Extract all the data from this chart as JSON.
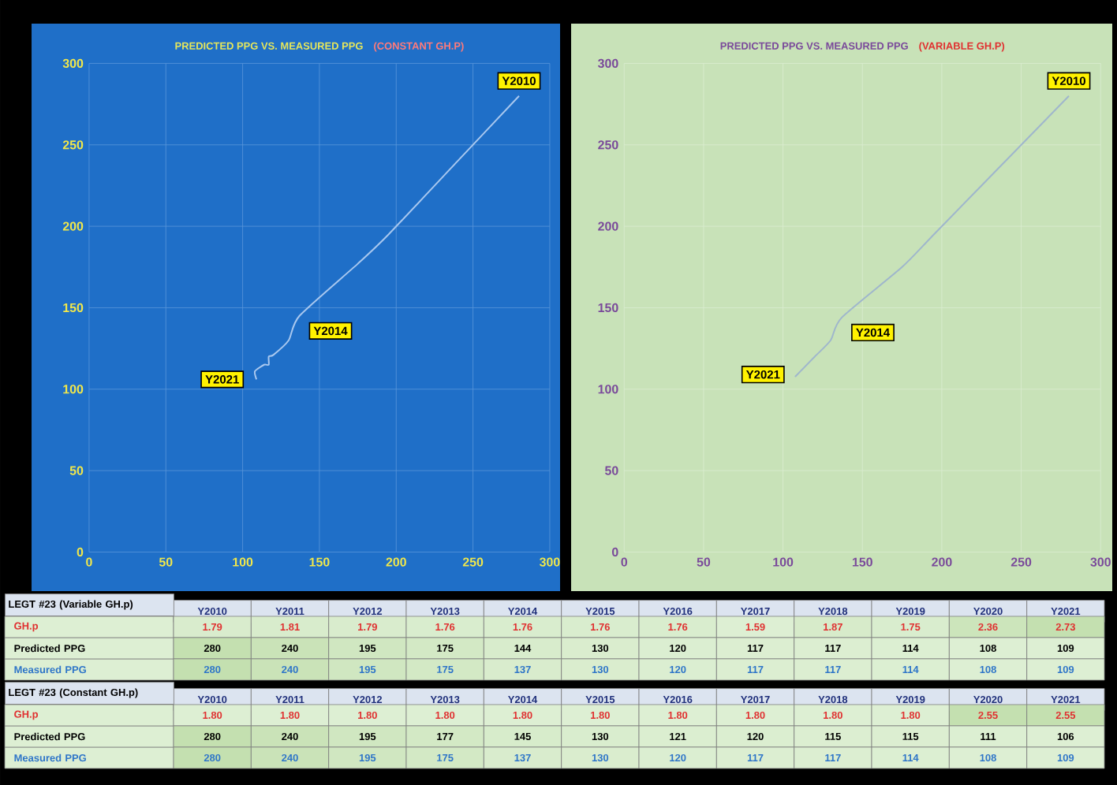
{
  "chart_data": [
    {
      "type": "line",
      "title": "PREDICTED PPG VS. MEASURED PPG",
      "subtitle": "(CONSTANT GH.P)",
      "xlim": [
        0,
        300
      ],
      "ylim": [
        0,
        300
      ],
      "xticks": [
        0,
        50,
        100,
        150,
        200,
        250,
        300
      ],
      "yticks": [
        0,
        50,
        100,
        150,
        200,
        250,
        300
      ],
      "grid": true,
      "series": [
        {
          "color": "#a9c8ef",
          "x": [
            280,
            240,
            195,
            175,
            137,
            130,
            120,
            117,
            117,
            114,
            108,
            109
          ],
          "values": [
            280,
            240,
            195,
            177,
            145,
            130,
            121,
            120,
            115,
            115,
            111,
            106
          ]
        }
      ],
      "annotations": [
        {
          "text": "Y2010",
          "x": 280,
          "y": 280
        },
        {
          "text": "Y2014",
          "x": 137,
          "y": 145
        },
        {
          "text": "Y2021",
          "x": 109,
          "y": 106
        }
      ]
    },
    {
      "type": "line",
      "title": "PREDICTED PPG VS. MEASURED PPG",
      "subtitle": "(VARIABLE GH.P)",
      "xlim": [
        0,
        300
      ],
      "ylim": [
        0,
        300
      ],
      "xticks": [
        0,
        50,
        100,
        150,
        200,
        250,
        300
      ],
      "yticks": [
        0,
        50,
        100,
        150,
        200,
        250,
        300
      ],
      "grid": true,
      "series": [
        {
          "color": "#9fb6cc",
          "x": [
            280,
            240,
            195,
            175,
            137,
            130,
            120,
            117,
            117,
            114,
            108,
            109
          ],
          "values": [
            280,
            240,
            195,
            175,
            144,
            130,
            120,
            117,
            117,
            114,
            108,
            109
          ]
        }
      ],
      "annotations": [
        {
          "text": "Y2010",
          "x": 280,
          "y": 280
        },
        {
          "text": "Y2014",
          "x": 137,
          "y": 144
        },
        {
          "text": "Y2021",
          "x": 109,
          "y": 109
        }
      ]
    },
    {
      "type": "heatmap",
      "title": "LEGT #23 (Variable GH.p)",
      "categories": [
        "Y2010",
        "Y2011",
        "Y2012",
        "Y2013",
        "Y2014",
        "Y2015",
        "Y2016",
        "Y2017",
        "Y2018",
        "Y2019",
        "Y2020",
        "Y2021"
      ],
      "y_categories": [
        "GH.p",
        "Predicted PPG",
        "Measured PPG"
      ],
      "cells": [
        [
          1.79,
          1.81,
          1.79,
          1.76,
          1.76,
          1.76,
          1.76,
          1.59,
          1.87,
          1.75,
          2.36,
          2.73
        ],
        [
          280,
          240,
          195,
          175,
          144,
          130,
          120,
          117,
          117,
          114,
          108,
          109
        ],
        [
          280,
          240,
          195,
          175,
          137,
          130,
          120,
          117,
          117,
          114,
          108,
          109
        ]
      ],
      "cell_labels": [
        [
          "1.79",
          "1.81",
          "1.79",
          "1.76",
          "1.76",
          "1.76",
          "1.76",
          "1.59",
          "1.87",
          "1.75",
          "2.36",
          "2.73"
        ],
        [
          "280",
          "240",
          "195",
          "175",
          "144",
          "130",
          "120",
          "117",
          "117",
          "114",
          "108",
          "109"
        ],
        [
          "280",
          "240",
          "195",
          "175",
          "137",
          "130",
          "120",
          "117",
          "117",
          "114",
          "108",
          "109"
        ]
      ]
    },
    {
      "type": "heatmap",
      "title": "LEGT #23 (Constant GH.p)",
      "categories": [
        "Y2010",
        "Y2011",
        "Y2012",
        "Y2013",
        "Y2014",
        "Y2015",
        "Y2016",
        "Y2017",
        "Y2018",
        "Y2019",
        "Y2020",
        "Y2021"
      ],
      "y_categories": [
        "GH.p",
        "Predicted PPG",
        "Measured PPG"
      ],
      "cells": [
        [
          1.8,
          1.8,
          1.8,
          1.8,
          1.8,
          1.8,
          1.8,
          1.8,
          1.8,
          1.8,
          2.55,
          2.55
        ],
        [
          280,
          240,
          195,
          177,
          145,
          130,
          121,
          120,
          115,
          115,
          111,
          106
        ],
        [
          280,
          240,
          195,
          175,
          137,
          130,
          120,
          117,
          117,
          114,
          108,
          109
        ]
      ],
      "cell_labels": [
        [
          "1.80",
          "1.80",
          "1.80",
          "1.80",
          "1.80",
          "1.80",
          "1.80",
          "1.80",
          "1.80",
          "1.80",
          "2.55",
          "2.55"
        ],
        [
          "280",
          "240",
          "195",
          "177",
          "145",
          "130",
          "121",
          "120",
          "115",
          "115",
          "111",
          "106"
        ],
        [
          "280",
          "240",
          "195",
          "175",
          "137",
          "130",
          "120",
          "117",
          "117",
          "114",
          "108",
          "109"
        ]
      ]
    }
  ]
}
